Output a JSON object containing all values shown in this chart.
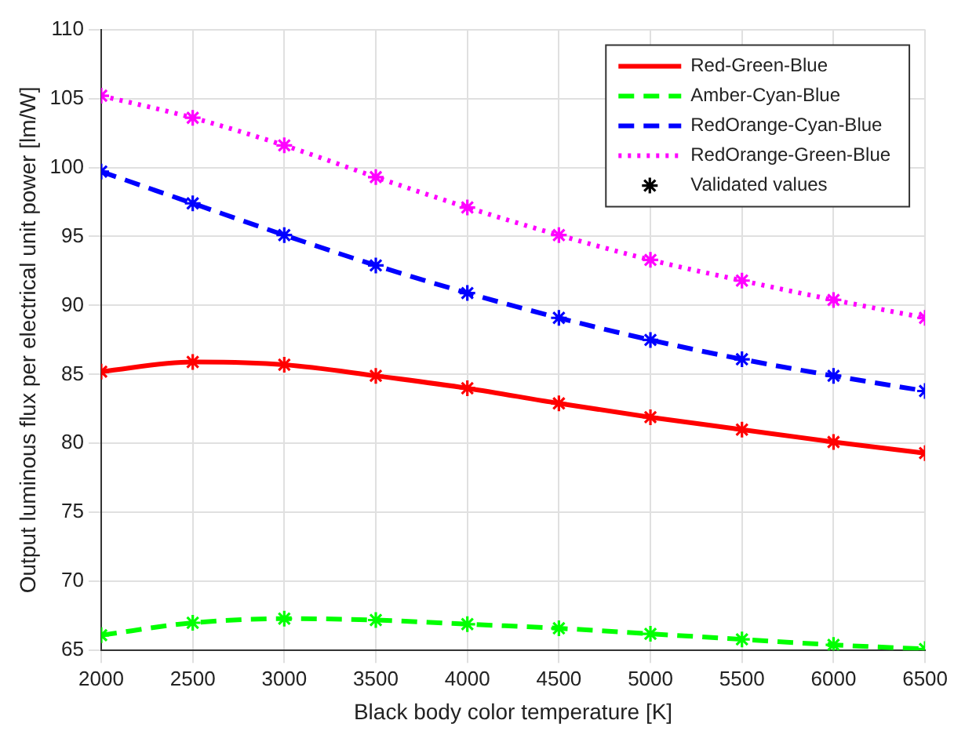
{
  "chart_data": {
    "type": "line",
    "xlabel": "Black body color temperature [K]",
    "ylabel": "Output luminous flux per electrical unit power [lm/W]",
    "x": [
      2000,
      2500,
      3000,
      3500,
      4000,
      4500,
      5000,
      5500,
      6000,
      6500
    ],
    "series": [
      {
        "name": "Red-Green-Blue",
        "color": "#ff0000",
        "line_style": "solid",
        "marker": "cross",
        "values": [
          85.2,
          85.9,
          85.7,
          84.9,
          84.0,
          82.9,
          81.9,
          81.0,
          80.1,
          79.3
        ]
      },
      {
        "name": "Amber-Cyan-Blue",
        "color": "#00ff00",
        "line_style": "dashed",
        "marker": "cross",
        "values": [
          66.1,
          67.0,
          67.3,
          67.2,
          66.9,
          66.6,
          66.2,
          65.8,
          65.4,
          65.1
        ]
      },
      {
        "name": "RedOrange-Cyan-Blue",
        "color": "#0000ff",
        "line_style": "dashed",
        "marker": "cross",
        "values": [
          99.7,
          97.4,
          95.1,
          92.9,
          90.9,
          89.1,
          87.5,
          86.1,
          84.9,
          83.8
        ]
      },
      {
        "name": "RedOrange-Green-Blue",
        "color": "#ff00ff",
        "line_style": "dotted",
        "marker": "cross",
        "values": [
          105.2,
          103.6,
          101.6,
          99.3,
          97.1,
          95.1,
          93.3,
          91.8,
          90.4,
          89.1
        ]
      },
      {
        "name": "Validated values",
        "type": "scatter",
        "color": "#000000",
        "marker": "cross",
        "values": [
          null,
          null,
          null,
          null,
          null,
          null,
          null,
          null,
          null,
          null
        ]
      }
    ],
    "xlim": [
      2000,
      6500
    ],
    "xticks": [
      2000,
      2500,
      3000,
      3500,
      4000,
      4500,
      5000,
      5500,
      6000,
      6500
    ],
    "ylim": [
      65,
      110
    ],
    "yticks": [
      65,
      70,
      75,
      80,
      85,
      90,
      95,
      100,
      105,
      110
    ],
    "grid": true,
    "legend": "top right"
  }
}
